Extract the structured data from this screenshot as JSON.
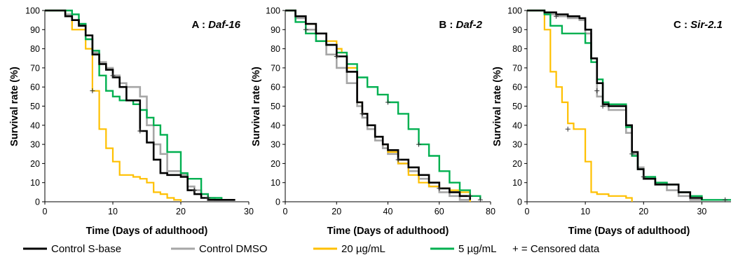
{
  "chart_data": [
    {
      "type": "line",
      "title": "A : Daf-16",
      "title_prefix": "A : ",
      "title_gene": "Daf-16",
      "xlabel": "Time (Days of adulthood)",
      "ylabel": "Survival rate (%)",
      "xlim": [
        0,
        30
      ],
      "ylim": [
        0,
        100
      ],
      "xticks": [
        "0",
        "10",
        "20",
        "30"
      ],
      "yticks": [
        "0",
        "10",
        "20",
        "30",
        "40",
        "50",
        "60",
        "70",
        "80",
        "90",
        "100"
      ],
      "series": [
        {
          "name": "Control DMSO",
          "x": [
            0,
            3,
            4,
            5,
            6,
            7,
            8,
            9,
            10,
            11,
            12,
            14,
            15,
            16,
            17,
            18,
            20,
            21,
            22,
            23,
            24,
            25,
            28
          ],
          "y": [
            100,
            98,
            95,
            93,
            85,
            78,
            73,
            70,
            66,
            62,
            60,
            55,
            40,
            30,
            25,
            16,
            14,
            8,
            6,
            4,
            2,
            1,
            1
          ]
        },
        {
          "name": "20 µg/mL",
          "x": [
            0,
            3,
            4,
            6,
            7,
            8,
            9,
            10,
            11,
            13,
            14,
            15,
            16,
            17,
            18,
            19,
            20
          ],
          "y": [
            100,
            97,
            90,
            80,
            58,
            38,
            28,
            21,
            14,
            13,
            12,
            10,
            5,
            4,
            2,
            1,
            0
          ]
        },
        {
          "name": "5 µg/mL",
          "x": [
            0,
            4,
            5,
            6,
            7,
            8,
            9,
            10,
            11,
            13,
            14,
            15,
            16,
            17,
            18,
            20,
            21,
            23,
            24,
            26
          ],
          "y": [
            100,
            98,
            93,
            85,
            79,
            66,
            58,
            55,
            53,
            51,
            48,
            44,
            40,
            35,
            26,
            15,
            12,
            4,
            2,
            1
          ]
        },
        {
          "name": "Control S-base",
          "x": [
            0,
            3,
            4,
            5,
            6,
            7,
            8,
            9,
            10,
            11,
            12,
            14,
            15,
            16,
            17,
            18,
            20,
            21,
            22,
            23,
            24,
            25,
            28
          ],
          "y": [
            100,
            97,
            95,
            92,
            87,
            77,
            72,
            69,
            65,
            60,
            53,
            37,
            31,
            22,
            15,
            14,
            13,
            6,
            4,
            2,
            1,
            1,
            1
          ]
        }
      ],
      "censored": [
        {
          "x": 7,
          "y": 58
        },
        {
          "x": 10,
          "y": 66
        },
        {
          "x": 14,
          "y": 37
        },
        {
          "x": 22,
          "y": 6
        },
        {
          "x": 24,
          "y": 2
        }
      ]
    },
    {
      "type": "line",
      "title": "B : Daf-2",
      "title_prefix": "B : ",
      "title_gene": "Daf-2",
      "xlabel": "Time (Days of adulthood)",
      "ylabel": "Survival rate (%)",
      "xlim": [
        0,
        80
      ],
      "ylim": [
        0,
        100
      ],
      "xticks": [
        "0",
        "20",
        "40",
        "60",
        "80"
      ],
      "yticks": [
        "0",
        "10",
        "20",
        "30",
        "40",
        "50",
        "60",
        "70",
        "80",
        "90",
        "100"
      ],
      "series": [
        {
          "name": "Control DMSO",
          "x": [
            0,
            4,
            8,
            12,
            16,
            20,
            24,
            28,
            30,
            32,
            35,
            38,
            40,
            44,
            48,
            52,
            56,
            60,
            64,
            68,
            72
          ],
          "y": [
            100,
            96,
            90,
            84,
            77,
            70,
            62,
            50,
            44,
            38,
            32,
            28,
            25,
            20,
            16,
            12,
            8,
            5,
            3,
            1,
            0
          ]
        },
        {
          "name": "20 µg/mL",
          "x": [
            0,
            4,
            8,
            12,
            16,
            20,
            22,
            24,
            28,
            30,
            32,
            35,
            38,
            40,
            44,
            48,
            52,
            56,
            60,
            64,
            68,
            72
          ],
          "y": [
            100,
            97,
            93,
            88,
            84,
            80,
            78,
            70,
            52,
            46,
            40,
            34,
            30,
            26,
            20,
            14,
            10,
            8,
            7,
            6,
            5,
            0
          ]
        },
        {
          "name": "5 µg/mL",
          "x": [
            0,
            4,
            8,
            12,
            16,
            20,
            24,
            28,
            32,
            36,
            40,
            44,
            48,
            52,
            56,
            60,
            64,
            68,
            72,
            76
          ],
          "y": [
            100,
            94,
            88,
            84,
            82,
            78,
            72,
            65,
            60,
            56,
            52,
            46,
            38,
            30,
            24,
            16,
            10,
            6,
            3,
            1
          ]
        },
        {
          "name": "Control S-base",
          "x": [
            0,
            4,
            8,
            12,
            16,
            20,
            24,
            28,
            30,
            32,
            35,
            38,
            40,
            44,
            48,
            52,
            56,
            60,
            64,
            68,
            72
          ],
          "y": [
            100,
            97,
            93,
            88,
            82,
            76,
            68,
            52,
            46,
            40,
            34,
            30,
            27,
            22,
            18,
            14,
            10,
            7,
            5,
            3,
            1
          ]
        }
      ],
      "censored": [
        {
          "x": 8,
          "y": 90
        },
        {
          "x": 20,
          "y": 76
        },
        {
          "x": 30,
          "y": 46
        },
        {
          "x": 40,
          "y": 52
        },
        {
          "x": 44,
          "y": 22
        },
        {
          "x": 52,
          "y": 30
        },
        {
          "x": 60,
          "y": 7
        },
        {
          "x": 72,
          "y": 3
        },
        {
          "x": 76,
          "y": 1
        }
      ]
    },
    {
      "type": "line",
      "title": "C : Sir-2.1",
      "title_prefix": "C : ",
      "title_gene": "Sir-2.1",
      "xlabel": "Time (Days of adulthood)",
      "ylabel": "Survival rate (%)",
      "xlim": [
        0,
        35
      ],
      "ylim": [
        0,
        100
      ],
      "xticks": [
        "0",
        "10",
        "20",
        "30"
      ],
      "yticks": [
        "0",
        "10",
        "20",
        "30",
        "40",
        "50",
        "60",
        "70",
        "80",
        "90",
        "100"
      ],
      "series": [
        {
          "name": "Control DMSO",
          "x": [
            0,
            3,
            5,
            7,
            9,
            10,
            11,
            12,
            13,
            14,
            16,
            17,
            18,
            19,
            20,
            22,
            24,
            26,
            28,
            30
          ],
          "y": [
            100,
            98,
            97,
            96,
            95,
            88,
            75,
            55,
            50,
            48,
            48,
            36,
            25,
            18,
            12,
            10,
            6,
            3,
            1,
            1
          ]
        },
        {
          "name": "20 µg/mL",
          "x": [
            0,
            3,
            4,
            5,
            6,
            7,
            8,
            10,
            11,
            12,
            14,
            16,
            17,
            18
          ],
          "y": [
            100,
            90,
            68,
            60,
            52,
            41,
            38,
            21,
            5,
            4,
            3,
            3,
            2,
            0
          ]
        },
        {
          "name": "5 µg/mL",
          "x": [
            0,
            3,
            4,
            6,
            8,
            10,
            11,
            12,
            13,
            14,
            16,
            17,
            18,
            19,
            20,
            22,
            24,
            26,
            28,
            30,
            32,
            35
          ],
          "y": [
            100,
            98,
            92,
            88,
            88,
            83,
            73,
            64,
            52,
            51,
            51,
            39,
            24,
            17,
            13,
            10,
            9,
            5,
            3,
            1,
            1,
            1
          ]
        },
        {
          "name": "Control S-base",
          "x": [
            0,
            3,
            5,
            7,
            9,
            10,
            11,
            12,
            13,
            14,
            16,
            17,
            18,
            19,
            20,
            22,
            24,
            26,
            28,
            30
          ],
          "y": [
            100,
            99,
            98,
            97,
            96,
            90,
            75,
            62,
            51,
            50,
            50,
            40,
            26,
            17,
            12,
            9,
            9,
            5,
            2,
            1
          ]
        }
      ],
      "censored": [
        {
          "x": 5,
          "y": 97
        },
        {
          "x": 7,
          "y": 38
        },
        {
          "x": 12,
          "y": 58
        },
        {
          "x": 13,
          "y": 50
        },
        {
          "x": 18,
          "y": 25
        },
        {
          "x": 20,
          "y": 13
        },
        {
          "x": 34,
          "y": 1
        }
      ]
    }
  ],
  "legend": [
    {
      "label": "Control S-base",
      "color": "#000000"
    },
    {
      "label": "Control DMSO",
      "color": "#a6a6a6"
    },
    {
      "label": "20 µg/mL",
      "color": "#ffc000"
    },
    {
      "label": "5 µg/mL",
      "color": "#00b050"
    }
  ],
  "legend_note": "+ = Censored data",
  "series_colors": {
    "Control S-base": "#000000",
    "Control DMSO": "#a6a6a6",
    "20 µg/mL": "#ffc000",
    "5 µg/mL": "#00b050"
  }
}
